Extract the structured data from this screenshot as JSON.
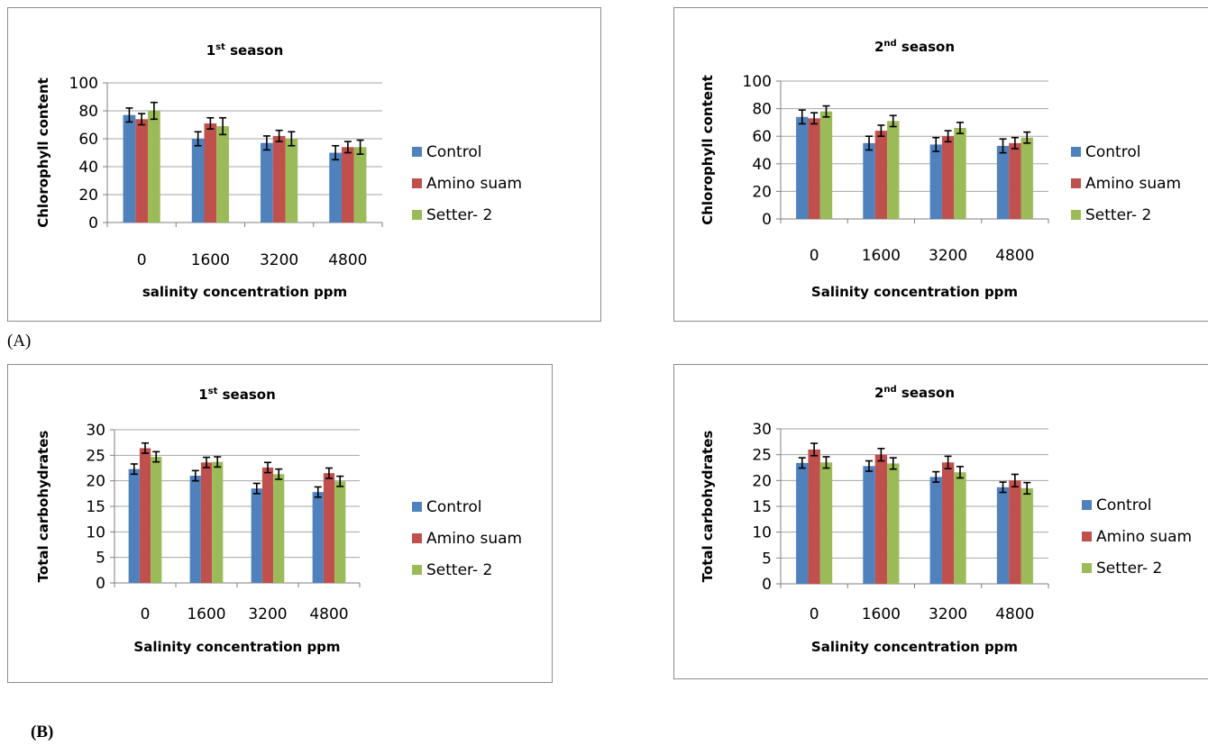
{
  "figure": {
    "label_a": "(A)",
    "label_b": "(B)"
  },
  "colors": {
    "control": "#4f81bd",
    "amino_suam": "#c0504d",
    "setter2": "#9bbb59",
    "grid": "#a6a6a6",
    "axis": "#7f7f7f"
  },
  "chart_data": [
    {
      "id": "chart-a1",
      "type": "bar",
      "title": "1",
      "title_sup": "st",
      "title_rest": " season",
      "xlabel": "salinity concentration ppm",
      "ylabel": "Chlorophyll content",
      "categories": [
        "0",
        "1600",
        "3200",
        "4800"
      ],
      "ylim": [
        0,
        100
      ],
      "yticks": [
        "0",
        "20",
        "40",
        "60",
        "80",
        "100"
      ],
      "grid": true,
      "legend_position": "right",
      "series": [
        {
          "name": "Control",
          "values": [
            77,
            60,
            57,
            50
          ],
          "errors": [
            5,
            5,
            5,
            5
          ]
        },
        {
          "name": "Amino suam",
          "values": [
            74,
            71,
            62,
            54
          ],
          "errors": [
            4,
            4,
            4,
            4
          ]
        },
        {
          "name": "Setter- 2",
          "values": [
            80,
            69,
            60,
            54
          ],
          "errors": [
            6,
            6,
            5,
            5
          ]
        }
      ]
    },
    {
      "id": "chart-a2",
      "type": "bar",
      "title": "2",
      "title_sup": "nd",
      "title_rest": " season",
      "xlabel": "Salinity concentration ppm",
      "ylabel": "Chlorophyll content",
      "categories": [
        "0",
        "1600",
        "3200",
        "4800"
      ],
      "ylim": [
        0,
        100
      ],
      "yticks": [
        "0",
        "20",
        "40",
        "60",
        "80",
        "100"
      ],
      "grid": true,
      "legend_position": "right",
      "series": [
        {
          "name": "Control",
          "values": [
            74,
            55,
            54,
            53
          ],
          "errors": [
            5,
            5,
            5,
            5
          ]
        },
        {
          "name": "Amino suam",
          "values": [
            73,
            64,
            60,
            55
          ],
          "errors": [
            4,
            4,
            4,
            4
          ]
        },
        {
          "name": "Setter- 2",
          "values": [
            78,
            71,
            66,
            59
          ],
          "errors": [
            4,
            4,
            4,
            4
          ]
        }
      ]
    },
    {
      "id": "chart-b1",
      "type": "bar",
      "title": "1",
      "title_sup": "st",
      "title_rest": " season",
      "xlabel": "Salinity concentration ppm",
      "ylabel": "Total carbohydrates",
      "categories": [
        "0",
        "1600",
        "3200",
        "4800"
      ],
      "ylim": [
        0,
        30
      ],
      "yticks": [
        "0",
        "5",
        "10",
        "15",
        "20",
        "25",
        "30"
      ],
      "grid": true,
      "legend_position": "right",
      "series": [
        {
          "name": "Control",
          "values": [
            22.3,
            21,
            18.5,
            17.8
          ],
          "errors": [
            1,
            1,
            1,
            1
          ]
        },
        {
          "name": "Amino suam",
          "values": [
            26.4,
            23.6,
            22.6,
            21.5
          ],
          "errors": [
            1,
            1,
            1,
            1
          ]
        },
        {
          "name": "Setter- 2",
          "values": [
            24.7,
            23.7,
            21.3,
            19.9
          ],
          "errors": [
            1,
            1,
            1,
            1
          ]
        }
      ]
    },
    {
      "id": "chart-b2",
      "type": "bar",
      "title": "2",
      "title_sup": "nd",
      "title_rest": " season",
      "xlabel": "Salinity concentration ppm",
      "ylabel": "Total carbohydrates",
      "categories": [
        "0",
        "1600",
        "3200",
        "4800"
      ],
      "ylim": [
        0,
        30
      ],
      "yticks": [
        "0",
        "5",
        "10",
        "15",
        "20",
        "25",
        "30"
      ],
      "grid": true,
      "legend_position": "right",
      "series": [
        {
          "name": "Control",
          "values": [
            23.4,
            22.8,
            20.7,
            18.7
          ],
          "errors": [
            1,
            1,
            1,
            1
          ]
        },
        {
          "name": "Amino suam",
          "values": [
            26,
            25,
            23.5,
            20
          ],
          "errors": [
            1.2,
            1.2,
            1.2,
            1.2
          ]
        },
        {
          "name": "Setter- 2",
          "values": [
            23.5,
            23.3,
            21.6,
            18.5
          ],
          "errors": [
            1.1,
            1.1,
            1.1,
            1.1
          ]
        }
      ]
    }
  ]
}
